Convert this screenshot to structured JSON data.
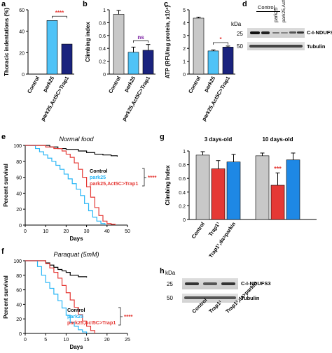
{
  "panel_labels": {
    "a": "a",
    "b": "b",
    "c": "c",
    "d": "d",
    "e": "e",
    "f": "f",
    "g": "g",
    "h": "h"
  },
  "colors": {
    "control": "#c8c8c8",
    "park25": "#4fc3f7",
    "rescue": "#1a237e",
    "trap1": "#e53935",
    "parkin": "#1e88e5",
    "sig": "#e53935",
    "ns": "#7b1fa2",
    "black": "#000000"
  },
  "panel_d": {
    "kda": "kDa",
    "groups": [
      "Control",
      "park25",
      "park25,Act5C>Trap1"
    ],
    "markers": [
      "25",
      "50"
    ],
    "bands": [
      "C-I-NDUFS2",
      "Tubulin"
    ]
  },
  "panel_h": {
    "kda": "kDa",
    "lanes": [
      "Control",
      "Trap1¹",
      "Trap1¹,da>parkin"
    ],
    "markers": [
      "25",
      "50"
    ],
    "bands": [
      "C-I-NDUFS3",
      "Tubulin"
    ]
  },
  "chart_data": [
    {
      "id": "a",
      "type": "bar",
      "ylabel": "Thoracic indentations (%)",
      "ylim": [
        0,
        60
      ],
      "yticks": [
        0,
        20,
        40,
        60
      ],
      "categories": [
        "Control",
        "park25",
        "park25,Act5C>Trap1"
      ],
      "values": [
        0,
        50,
        28
      ],
      "errors": [
        0,
        0,
        0
      ],
      "colors": [
        "#c8c8c8",
        "#4fc3f7",
        "#1a237e"
      ],
      "annotations": [
        {
          "text": "****",
          "from": 1,
          "to": 2,
          "y": 54,
          "color": "#e53935"
        }
      ]
    },
    {
      "id": "b",
      "type": "bar",
      "ylabel": "Climbing index",
      "ylim": [
        0,
        1
      ],
      "yticks": [
        0,
        0.2,
        0.4,
        0.6,
        0.8,
        1
      ],
      "categories": [
        "Control",
        "park25",
        "park25,Act5C>Trap1"
      ],
      "values": [
        0.93,
        0.34,
        0.37
      ],
      "errors": [
        0.06,
        0.08,
        0.09
      ],
      "colors": [
        "#c8c8c8",
        "#4fc3f7",
        "#1a237e"
      ],
      "annotations": [
        {
          "text": "ns",
          "from": 1,
          "to": 2,
          "y": 0.52,
          "color": "#7b1fa2"
        }
      ]
    },
    {
      "id": "c",
      "type": "bar",
      "ylabel": "ATP (RFU/mg protein, x10⁴)",
      "ylim": [
        0,
        5
      ],
      "yticks": [
        0,
        1,
        2,
        3,
        4,
        5
      ],
      "categories": [
        "Control",
        "park25",
        "park25,Act5C>Trap1"
      ],
      "values": [
        4.35,
        1.8,
        2.1
      ],
      "errors": [
        0.08,
        0.08,
        0.08
      ],
      "colors": [
        "#c8c8c8",
        "#4fc3f7",
        "#1a237e"
      ],
      "annotations": [
        {
          "text": "*",
          "from": 1,
          "to": 2,
          "y": 2.45,
          "color": "#e53935"
        }
      ]
    },
    {
      "id": "e",
      "type": "line",
      "title": "Normal food",
      "xlabel": "Days",
      "ylabel": "Percent survival",
      "xlim": [
        0,
        50
      ],
      "ylim": [
        0,
        100
      ],
      "xticks": [
        0,
        10,
        20,
        30,
        40,
        50
      ],
      "yticks": [
        0,
        20,
        40,
        60,
        80,
        100
      ],
      "legend": [
        "Control",
        "park25",
        "park25,Act5C>Trap1"
      ],
      "legend_colors": [
        "#000000",
        "#29b6f6",
        "#e53935"
      ],
      "bracket_text": "****",
      "series": [
        {
          "name": "Control",
          "color": "#000000",
          "x": [
            0,
            8,
            12,
            16,
            20,
            26,
            30,
            34,
            38,
            42,
            45
          ],
          "y": [
            100,
            100,
            98,
            96,
            95,
            93,
            91,
            89,
            88,
            87,
            86
          ]
        },
        {
          "name": "park25",
          "color": "#29b6f6",
          "x": [
            0,
            5,
            7,
            9,
            11,
            13,
            15,
            17,
            19,
            21,
            23,
            25,
            27,
            29,
            31,
            33,
            35,
            37,
            39
          ],
          "y": [
            100,
            96,
            92,
            88,
            84,
            80,
            75,
            70,
            64,
            58,
            52,
            45,
            37,
            27,
            18,
            10,
            5,
            2,
            0
          ]
        },
        {
          "name": "park25,Act5C>Trap1",
          "color": "#e53935",
          "x": [
            0,
            10,
            14,
            18,
            20,
            22,
            24,
            26,
            28,
            30,
            32,
            34,
            36,
            38,
            40,
            42,
            44
          ],
          "y": [
            100,
            98,
            96,
            93,
            89,
            85,
            78,
            70,
            60,
            48,
            35,
            22,
            12,
            5,
            2,
            1,
            0
          ]
        }
      ]
    },
    {
      "id": "f",
      "type": "line",
      "title": "Paraquat (5mM)",
      "xlabel": "Days",
      "ylabel": "Percent survival",
      "xlim": [
        0,
        25
      ],
      "ylim": [
        0,
        100
      ],
      "xticks": [
        0,
        5,
        10,
        15,
        20,
        25
      ],
      "yticks": [
        0,
        20,
        40,
        60,
        80,
        100
      ],
      "legend": [
        "Control",
        "park25",
        "park25,Act5C>Trap1"
      ],
      "legend_colors": [
        "#000000",
        "#29b6f6",
        "#e53935"
      ],
      "bracket_text": "****",
      "series": [
        {
          "name": "Control",
          "color": "#000000",
          "x": [
            0,
            4,
            5,
            6,
            7,
            8,
            9,
            10,
            11,
            13,
            15
          ],
          "y": [
            100,
            100,
            97,
            94,
            91,
            88,
            86,
            84,
            80,
            78,
            77
          ]
        },
        {
          "name": "park25",
          "color": "#29b6f6",
          "x": [
            0,
            3,
            4,
            5,
            6,
            7,
            8,
            9,
            10,
            11,
            12,
            13,
            14,
            15
          ],
          "y": [
            100,
            92,
            80,
            70,
            62,
            54,
            45,
            35,
            25,
            15,
            10,
            5,
            2,
            0
          ]
        },
        {
          "name": "park25,Act5C>Trap1",
          "color": "#e53935",
          "x": [
            0,
            4,
            5,
            6,
            7,
            8,
            9,
            10,
            11,
            12,
            13,
            14,
            15,
            16,
            17
          ],
          "y": [
            100,
            100,
            96,
            90,
            84,
            76,
            66,
            56,
            46,
            36,
            26,
            17,
            10,
            4,
            0
          ]
        }
      ]
    },
    {
      "id": "g",
      "type": "bar",
      "ylabel": "Climbing Index",
      "ylim": [
        0,
        1
      ],
      "yticks": [
        0,
        0.2,
        0.4,
        0.6,
        0.8,
        1
      ],
      "group_labels": [
        "3 days-old",
        "10 days-old"
      ],
      "categories": [
        "Control",
        "Trap1¹",
        "Trap1¹,da>parkin"
      ],
      "series": [
        {
          "name": "3 days-old",
          "values": [
            0.94,
            0.74,
            0.84
          ],
          "errors": [
            0.05,
            0.12,
            0.11
          ]
        },
        {
          "name": "10 days-old",
          "values": [
            0.93,
            0.5,
            0.87
          ],
          "errors": [
            0.04,
            0.18,
            0.1
          ]
        }
      ],
      "colors": [
        "#c8c8c8",
        "#e53935",
        "#1e88e5"
      ],
      "annotations": [
        {
          "text": "***",
          "group": 1,
          "bar": 1,
          "color": "#e53935"
        }
      ]
    }
  ]
}
